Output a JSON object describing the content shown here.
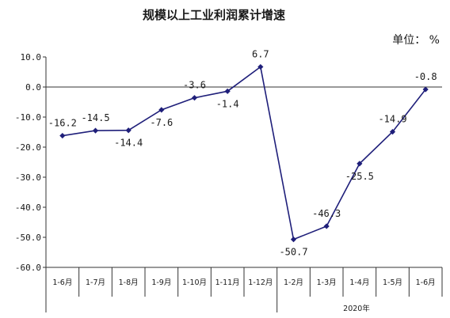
{
  "chart_data": {
    "type": "line",
    "title": "规模以上工业利润累计增速",
    "unit_label": "单位： %",
    "categories": [
      "1-6月",
      "1-7月",
      "1-8月",
      "1-9月",
      "1-10月",
      "1-11月",
      "1-12月",
      "1-2月",
      "1-3月",
      "1-4月",
      "1-5月",
      "1-6月"
    ],
    "values": [
      -16.2,
      -14.5,
      -14.4,
      -7.6,
      -3.6,
      -1.4,
      6.7,
      -50.7,
      -46.3,
      -25.5,
      -14.9,
      -0.8
    ],
    "data_labels": [
      "-16.2",
      "-14.5",
      "-14.4",
      "-7.6",
      "-3.6",
      "-1.4",
      "6.7",
      "-50.7",
      "-46.3",
      "-25.5",
      "-14.9",
      "-0.8"
    ],
    "ylim": [
      -60,
      10
    ],
    "yticks": [
      "10.0",
      "0.0",
      "-10.0",
      "-20.0",
      "-30.0",
      "-40.0",
      "-50.0",
      "-60.0"
    ],
    "year_group_label": "2020年",
    "line_color": "#1f1f7a",
    "grid": false
  }
}
